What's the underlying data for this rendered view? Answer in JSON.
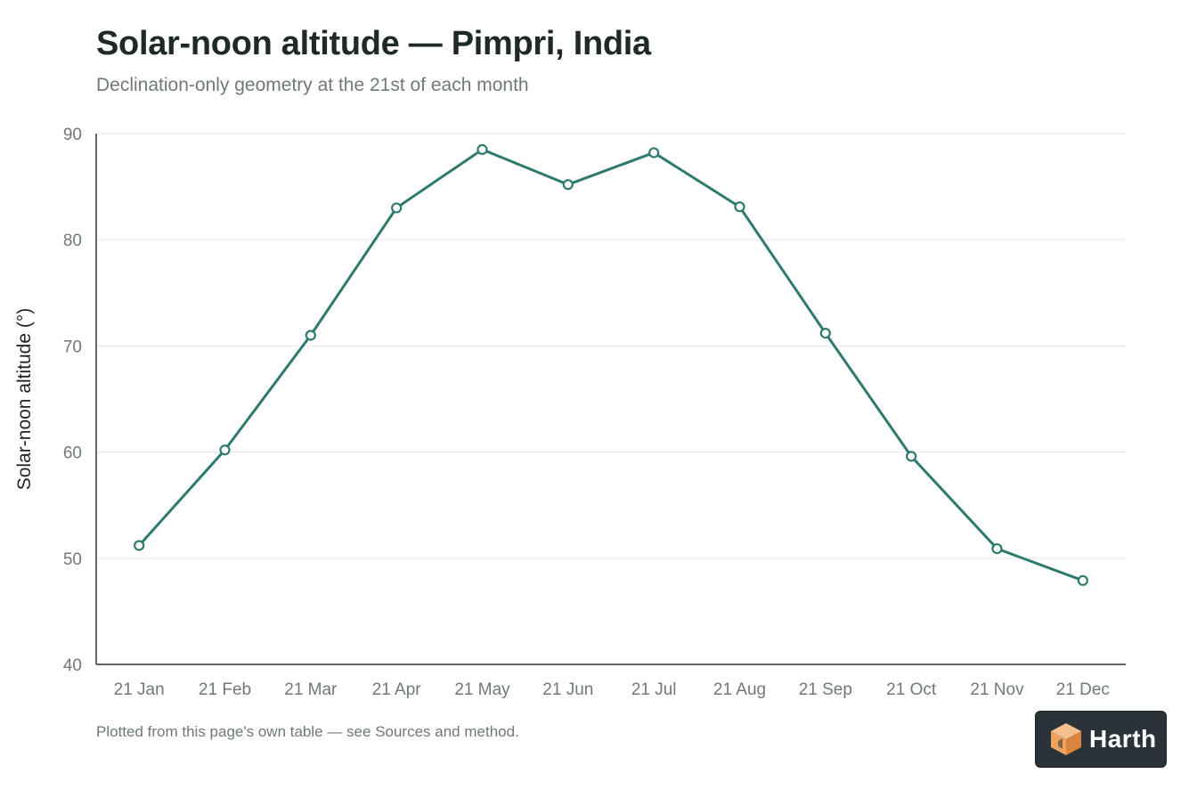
{
  "header": {
    "title": "Solar-noon altitude — Pimpri, India",
    "subtitle": "Declination-only geometry at the 21st of each month"
  },
  "footer": {
    "note": "Plotted from this page's own table — see Sources and method."
  },
  "brand": {
    "name": "Harth",
    "logo_icon": "cube-logo-icon"
  },
  "colors": {
    "series": "#2e7a6e",
    "grid": "#e6e9e8",
    "axis": "#333333",
    "tick_text": "#6f7a77",
    "brand_bg": "#2a3438",
    "logo_orange": "#f0a25e"
  },
  "chart_data": {
    "type": "line",
    "title": "Solar-noon altitude — Pimpri, India",
    "subtitle": "Declination-only geometry at the 21st of each month",
    "xlabel": "",
    "ylabel": "Solar-noon altitude (°)",
    "ylim": [
      40,
      90
    ],
    "yticks": [
      "90",
      "80",
      "70",
      "60",
      "50",
      "40"
    ],
    "grid": true,
    "legend": "none",
    "categories": [
      "21 Jan",
      "21 Feb",
      "21 Mar",
      "21 Apr",
      "21 May",
      "21 Jun",
      "21 Jul",
      "21 Aug",
      "21 Sep",
      "21 Oct",
      "21 Nov",
      "21 Dec"
    ],
    "series": [
      {
        "values": [
          51.2,
          60.2,
          71.0,
          83.0,
          88.5,
          85.2,
          88.2,
          83.1,
          71.2,
          59.6,
          50.9,
          47.9
        ]
      }
    ]
  }
}
